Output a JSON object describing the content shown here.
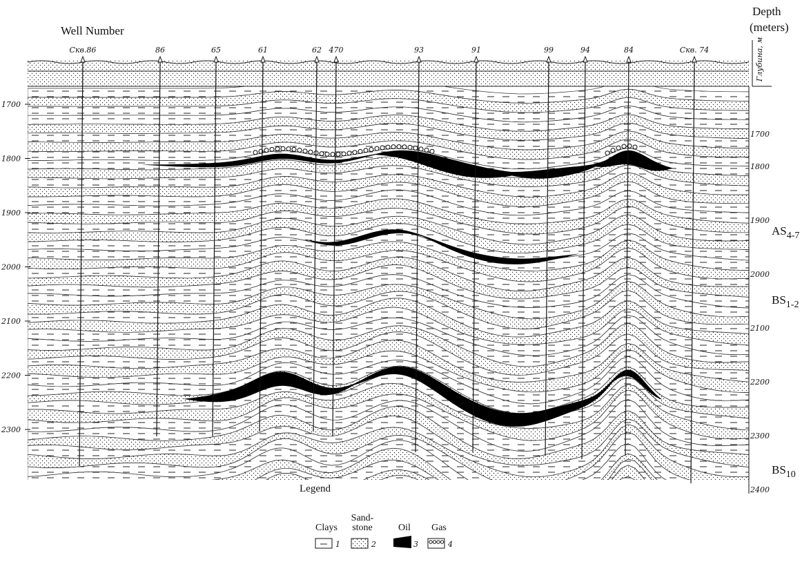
{
  "header": {
    "well_number": "Well Number",
    "depth_title": [
      "Depth",
      "(meters)"
    ],
    "depth_axis_caption": "Глубина, м"
  },
  "wells": [
    "Скв.86",
    "86",
    "65",
    "61",
    "62",
    "470",
    "93",
    "91",
    "99",
    "94",
    "84",
    "Скв. 74"
  ],
  "depth_left": [
    "1700",
    "1800",
    "1900",
    "2000",
    "2100",
    "2200",
    "2300"
  ],
  "depth_right": [
    "1700",
    "1800",
    "1900",
    "2000",
    "2100",
    "2200",
    "2300",
    "2400"
  ],
  "horizons": [
    {
      "name": "AS",
      "sub": "4-7"
    },
    {
      "name": "BS",
      "sub": "1-2"
    },
    {
      "name": "BS",
      "sub": "10"
    }
  ],
  "legend": {
    "title": "Legend",
    "items": [
      {
        "label": [
          "Clays"
        ],
        "number": "1"
      },
      {
        "label": [
          "Sand-",
          "stone"
        ],
        "number": "2"
      },
      {
        "label": [
          "Oil"
        ],
        "number": "3"
      },
      {
        "label": [
          "Gas"
        ],
        "number": "4"
      }
    ]
  }
}
